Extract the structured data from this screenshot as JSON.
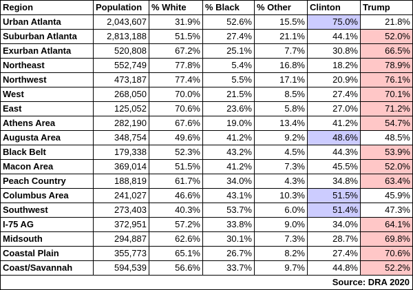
{
  "headers": [
    "Region",
    "Population",
    "% White",
    "% Black",
    "% Other",
    "Clinton",
    "Trump"
  ],
  "colors": {
    "clinton_win": "#ccccff",
    "trump_win": "#ffc7c7"
  },
  "rows": [
    {
      "region": "Urban Atlanta",
      "population": "2,043,607",
      "white": "31.9%",
      "black": "52.6%",
      "other": "15.5%",
      "clinton": "75.0%",
      "trump": "21.8%",
      "winner": "clinton"
    },
    {
      "region": "Suburban Atlanta",
      "population": "2,813,188",
      "white": "51.5%",
      "black": "27.4%",
      "other": "21.1%",
      "clinton": "44.1%",
      "trump": "52.0%",
      "winner": "trump"
    },
    {
      "region": "Exurban Atlanta",
      "population": "520,808",
      "white": "67.2%",
      "black": "25.1%",
      "other": "7.7%",
      "clinton": "30.8%",
      "trump": "66.5%",
      "winner": "trump"
    },
    {
      "region": "Northeast",
      "population": "552,749",
      "white": "77.8%",
      "black": "5.4%",
      "other": "16.8%",
      "clinton": "18.2%",
      "trump": "78.9%",
      "winner": "trump"
    },
    {
      "region": "Northwest",
      "population": "473,187",
      "white": "77.4%",
      "black": "5.5%",
      "other": "17.1%",
      "clinton": "20.9%",
      "trump": "76.1%",
      "winner": "trump"
    },
    {
      "region": "West",
      "population": "268,050",
      "white": "70.0%",
      "black": "21.5%",
      "other": "8.5%",
      "clinton": "27.4%",
      "trump": "70.1%",
      "winner": "trump"
    },
    {
      "region": "East",
      "population": "125,052",
      "white": "70.6%",
      "black": "23.6%",
      "other": "5.8%",
      "clinton": "27.0%",
      "trump": "71.2%",
      "winner": "trump"
    },
    {
      "region": "Athens Area",
      "population": "282,190",
      "white": "67.6%",
      "black": "19.0%",
      "other": "13.4%",
      "clinton": "41.2%",
      "trump": "54.7%",
      "winner": "trump"
    },
    {
      "region": "Augusta Area",
      "population": "348,754",
      "white": "49.6%",
      "black": "41.2%",
      "other": "9.2%",
      "clinton": "48.6%",
      "trump": "48.5%",
      "winner": "clinton"
    },
    {
      "region": "Black Belt",
      "population": "179,338",
      "white": "52.3%",
      "black": "43.2%",
      "other": "4.5%",
      "clinton": "44.3%",
      "trump": "53.9%",
      "winner": "trump"
    },
    {
      "region": "Macon Area",
      "population": "369,014",
      "white": "51.5%",
      "black": "41.2%",
      "other": "7.3%",
      "clinton": "45.5%",
      "trump": "52.0%",
      "winner": "trump"
    },
    {
      "region": "Peach Country",
      "population": "188,819",
      "white": "61.7%",
      "black": "34.0%",
      "other": "4.3%",
      "clinton": "34.8%",
      "trump": "63.4%",
      "winner": "trump"
    },
    {
      "region": "Columbus Area",
      "population": "241,027",
      "white": "46.6%",
      "black": "43.1%",
      "other": "10.3%",
      "clinton": "51.5%",
      "trump": "45.9%",
      "winner": "clinton"
    },
    {
      "region": "Southwest",
      "population": "273,403",
      "white": "40.3%",
      "black": "53.7%",
      "other": "6.0%",
      "clinton": "51.4%",
      "trump": "47.3%",
      "winner": "clinton"
    },
    {
      "region": "I-75 AG",
      "population": "372,951",
      "white": "57.2%",
      "black": "33.8%",
      "other": "9.0%",
      "clinton": "34.0%",
      "trump": "64.1%",
      "winner": "trump"
    },
    {
      "region": "Midsouth",
      "population": "294,887",
      "white": "62.6%",
      "black": "30.1%",
      "other": "7.3%",
      "clinton": "28.7%",
      "trump": "69.8%",
      "winner": "trump"
    },
    {
      "region": "Coastal Plain",
      "population": "355,773",
      "white": "65.1%",
      "black": "26.7%",
      "other": "8.2%",
      "clinton": "27.4%",
      "trump": "70.6%",
      "winner": "trump"
    },
    {
      "region": "Coast/Savannah",
      "population": "594,539",
      "white": "56.6%",
      "black": "33.7%",
      "other": "9.7%",
      "clinton": "44.8%",
      "trump": "52.2%",
      "winner": "trump"
    }
  ],
  "source": "Source: DRA 2020"
}
